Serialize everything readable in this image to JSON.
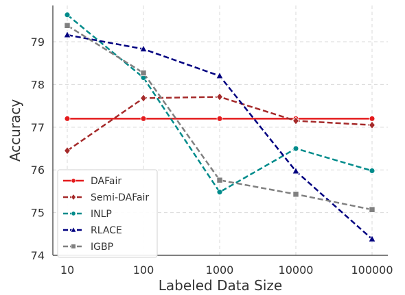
{
  "chart_data": {
    "type": "line",
    "title": "",
    "xlabel": "Labeled Data Size",
    "ylabel": "Accuracy",
    "categories": [
      "10",
      "100",
      "1000",
      "10000",
      "100000"
    ],
    "yticks": [
      "74",
      "75",
      "76",
      "77",
      "78",
      "79"
    ],
    "ylim": [
      74,
      79.85
    ],
    "grid": true,
    "legend_position": "lower-left",
    "series": [
      {
        "name": "DAFair",
        "values": [
          77.2,
          77.2,
          77.2,
          77.2,
          77.2
        ],
        "color": "#e41a1c",
        "marker": "circle",
        "dash": "solid"
      },
      {
        "name": "Semi-DAFair",
        "values": [
          76.45,
          77.68,
          77.71,
          77.15,
          77.05
        ],
        "color": "#a52a2a",
        "marker": "diamond",
        "dash": "dashed"
      },
      {
        "name": "INLP",
        "values": [
          79.63,
          78.16,
          75.48,
          76.5,
          75.98
        ],
        "color": "#008b8b",
        "marker": "circle",
        "dash": "dashed"
      },
      {
        "name": "RLACE",
        "values": [
          79.16,
          78.83,
          78.2,
          75.97,
          74.38
        ],
        "color": "#000080",
        "marker": "triangle",
        "dash": "dashed"
      },
      {
        "name": "IGBP",
        "values": [
          79.38,
          78.27,
          75.76,
          75.43,
          75.07
        ],
        "color": "#808080",
        "marker": "square",
        "dash": "dashed"
      }
    ]
  }
}
